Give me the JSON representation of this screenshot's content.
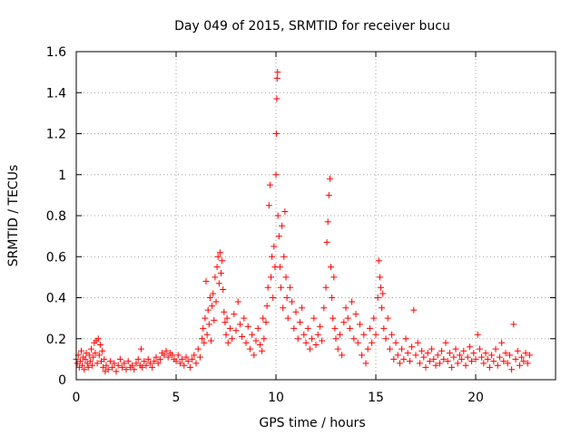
{
  "chart_data": {
    "type": "scatter",
    "title": "Day 049 of 2015, SRMTID for receiver bucu",
    "xlabel": "GPS time / hours",
    "ylabel": "SRMTID / TECUs",
    "xlim": [
      0,
      24
    ],
    "ylim": [
      0,
      1.6
    ],
    "x_ticks": [
      0,
      5,
      10,
      15,
      20
    ],
    "x_tick_labels": [
      "0",
      "5",
      "10",
      "15",
      "20"
    ],
    "y_ticks": [
      0,
      0.2,
      0.4,
      0.6,
      0.8,
      1,
      1.2,
      1.4,
      1.6
    ],
    "y_tick_labels": [
      "0",
      "0.2",
      "0.4",
      "0.6",
      "0.8",
      "1",
      "1.2",
      "1.4",
      "1.6"
    ],
    "grid": true,
    "marker": "+",
    "color": "#ff0000",
    "series": [
      {
        "name": "SRMTID",
        "points": [
          [
            0.0,
            0.1
          ],
          [
            0.05,
            0.08
          ],
          [
            0.1,
            0.12
          ],
          [
            0.15,
            0.06
          ],
          [
            0.2,
            0.09
          ],
          [
            0.25,
            0.14
          ],
          [
            0.3,
            0.07
          ],
          [
            0.35,
            0.11
          ],
          [
            0.4,
            0.05
          ],
          [
            0.45,
            0.1
          ],
          [
            0.5,
            0.13
          ],
          [
            0.55,
            0.08
          ],
          [
            0.6,
            0.06
          ],
          [
            0.65,
            0.12
          ],
          [
            0.7,
            0.09
          ],
          [
            0.75,
            0.15
          ],
          [
            0.8,
            0.07
          ],
          [
            0.85,
            0.11
          ],
          [
            0.9,
            0.18
          ],
          [
            0.95,
            0.13
          ],
          [
            1.0,
            0.19
          ],
          [
            1.05,
            0.08
          ],
          [
            1.1,
            0.2
          ],
          [
            1.15,
            0.12
          ],
          [
            1.2,
            0.17
          ],
          [
            1.25,
            0.09
          ],
          [
            1.3,
            0.14
          ],
          [
            1.35,
            0.06
          ],
          [
            1.4,
            0.1
          ],
          [
            1.45,
            0.04
          ],
          [
            1.5,
            0.07
          ],
          [
            1.6,
            0.05
          ],
          [
            1.7,
            0.09
          ],
          [
            1.8,
            0.06
          ],
          [
            1.9,
            0.08
          ],
          [
            2.0,
            0.04
          ],
          [
            2.1,
            0.07
          ],
          [
            2.2,
            0.1
          ],
          [
            2.3,
            0.06
          ],
          [
            2.4,
            0.08
          ],
          [
            2.5,
            0.05
          ],
          [
            2.6,
            0.09
          ],
          [
            2.7,
            0.06
          ],
          [
            2.8,
            0.07
          ],
          [
            2.9,
            0.05
          ],
          [
            3.0,
            0.08
          ],
          [
            3.1,
            0.1
          ],
          [
            3.2,
            0.07
          ],
          [
            3.25,
            0.15
          ],
          [
            3.3,
            0.06
          ],
          [
            3.4,
            0.09
          ],
          [
            3.5,
            0.07
          ],
          [
            3.6,
            0.1
          ],
          [
            3.7,
            0.08
          ],
          [
            3.8,
            0.06
          ],
          [
            3.9,
            0.09
          ],
          [
            4.0,
            0.11
          ],
          [
            4.1,
            0.08
          ],
          [
            4.2,
            0.1
          ],
          [
            4.3,
            0.13
          ],
          [
            4.4,
            0.12
          ],
          [
            4.5,
            0.14
          ],
          [
            4.6,
            0.11
          ],
          [
            4.7,
            0.13
          ],
          [
            4.8,
            0.12
          ],
          [
            4.9,
            0.1
          ],
          [
            5.0,
            0.09
          ],
          [
            5.1,
            0.12
          ],
          [
            5.2,
            0.08
          ],
          [
            5.3,
            0.1
          ],
          [
            5.4,
            0.07
          ],
          [
            5.5,
            0.11
          ],
          [
            5.6,
            0.09
          ],
          [
            5.7,
            0.06
          ],
          [
            5.8,
            0.1
          ],
          [
            5.9,
            0.12
          ],
          [
            6.0,
            0.08
          ],
          [
            6.1,
            0.15
          ],
          [
            6.2,
            0.11
          ],
          [
            6.3,
            0.2
          ],
          [
            6.35,
            0.25
          ],
          [
            6.4,
            0.18
          ],
          [
            6.45,
            0.3
          ],
          [
            6.5,
            0.48
          ],
          [
            6.55,
            0.22
          ],
          [
            6.6,
            0.34
          ],
          [
            6.65,
            0.27
          ],
          [
            6.7,
            0.4
          ],
          [
            6.75,
            0.19
          ],
          [
            6.8,
            0.36
          ],
          [
            6.85,
            0.42
          ],
          [
            6.9,
            0.29
          ],
          [
            6.95,
            0.5
          ],
          [
            7.0,
            0.38
          ],
          [
            7.05,
            0.55
          ],
          [
            7.1,
            0.6
          ],
          [
            7.15,
            0.47
          ],
          [
            7.2,
            0.62
          ],
          [
            7.25,
            0.52
          ],
          [
            7.3,
            0.58
          ],
          [
            7.35,
            0.44
          ],
          [
            7.4,
            0.33
          ],
          [
            7.45,
            0.28
          ],
          [
            7.5,
            0.22
          ],
          [
            7.55,
            0.3
          ],
          [
            7.6,
            0.18
          ],
          [
            7.7,
            0.25
          ],
          [
            7.8,
            0.2
          ],
          [
            7.9,
            0.32
          ],
          [
            8.0,
            0.24
          ],
          [
            8.1,
            0.38
          ],
          [
            8.2,
            0.27
          ],
          [
            8.3,
            0.21
          ],
          [
            8.4,
            0.3
          ],
          [
            8.5,
            0.18
          ],
          [
            8.6,
            0.26
          ],
          [
            8.7,
            0.15
          ],
          [
            8.8,
            0.22
          ],
          [
            8.9,
            0.12
          ],
          [
            9.0,
            0.19
          ],
          [
            9.1,
            0.25
          ],
          [
            9.2,
            0.17
          ],
          [
            9.3,
            0.14
          ],
          [
            9.35,
            0.3
          ],
          [
            9.4,
            0.2
          ],
          [
            9.5,
            0.28
          ],
          [
            9.55,
            0.36
          ],
          [
            9.6,
            0.45
          ],
          [
            9.65,
            0.85
          ],
          [
            9.7,
            0.95
          ],
          [
            9.75,
            0.5
          ],
          [
            9.8,
            0.6
          ],
          [
            9.85,
            0.4
          ],
          [
            9.9,
            0.65
          ],
          [
            9.95,
            0.55
          ],
          [
            10.0,
            1.0
          ],
          [
            10.02,
            1.2
          ],
          [
            10.04,
            1.37
          ],
          [
            10.06,
            1.47
          ],
          [
            10.08,
            1.5
          ],
          [
            10.1,
            0.8
          ],
          [
            10.15,
            0.7
          ],
          [
            10.2,
            0.55
          ],
          [
            10.25,
            0.45
          ],
          [
            10.3,
            0.75
          ],
          [
            10.35,
            0.35
          ],
          [
            10.4,
            0.6
          ],
          [
            10.45,
            0.82
          ],
          [
            10.5,
            0.5
          ],
          [
            10.55,
            0.4
          ],
          [
            10.6,
            0.3
          ],
          [
            10.7,
            0.45
          ],
          [
            10.8,
            0.38
          ],
          [
            10.9,
            0.25
          ],
          [
            11.0,
            0.33
          ],
          [
            11.1,
            0.2
          ],
          [
            11.2,
            0.28
          ],
          [
            11.3,
            0.35
          ],
          [
            11.4,
            0.22
          ],
          [
            11.5,
            0.18
          ],
          [
            11.6,
            0.25
          ],
          [
            11.7,
            0.15
          ],
          [
            11.8,
            0.2
          ],
          [
            11.9,
            0.3
          ],
          [
            12.0,
            0.17
          ],
          [
            12.1,
            0.22
          ],
          [
            12.2,
            0.26
          ],
          [
            12.3,
            0.19
          ],
          [
            12.4,
            0.35
          ],
          [
            12.5,
            0.45
          ],
          [
            12.55,
            0.67
          ],
          [
            12.6,
            0.77
          ],
          [
            12.65,
            0.9
          ],
          [
            12.7,
            0.98
          ],
          [
            12.75,
            0.55
          ],
          [
            12.8,
            0.4
          ],
          [
            12.85,
            0.3
          ],
          [
            12.9,
            0.5
          ],
          [
            12.95,
            0.25
          ],
          [
            13.0,
            0.2
          ],
          [
            13.1,
            0.15
          ],
          [
            13.2,
            0.22
          ],
          [
            13.3,
            0.12
          ],
          [
            13.4,
            0.28
          ],
          [
            13.5,
            0.35
          ],
          [
            13.6,
            0.3
          ],
          [
            13.7,
            0.25
          ],
          [
            13.8,
            0.38
          ],
          [
            13.9,
            0.2
          ],
          [
            14.0,
            0.32
          ],
          [
            14.1,
            0.18
          ],
          [
            14.2,
            0.27
          ],
          [
            14.3,
            0.12
          ],
          [
            14.4,
            0.22
          ],
          [
            14.5,
            0.08
          ],
          [
            14.6,
            0.15
          ],
          [
            14.7,
            0.25
          ],
          [
            14.8,
            0.18
          ],
          [
            14.9,
            0.3
          ],
          [
            15.0,
            0.22
          ],
          [
            15.1,
            0.4
          ],
          [
            15.15,
            0.58
          ],
          [
            15.2,
            0.5
          ],
          [
            15.25,
            0.45
          ],
          [
            15.3,
            0.35
          ],
          [
            15.35,
            0.42
          ],
          [
            15.4,
            0.25
          ],
          [
            15.5,
            0.2
          ],
          [
            15.6,
            0.3
          ],
          [
            15.7,
            0.15
          ],
          [
            15.8,
            0.22
          ],
          [
            15.9,
            0.1
          ],
          [
            16.0,
            0.18
          ],
          [
            16.1,
            0.12
          ],
          [
            16.2,
            0.08
          ],
          [
            16.3,
            0.15
          ],
          [
            16.4,
            0.1
          ],
          [
            16.5,
            0.2
          ],
          [
            16.6,
            0.13
          ],
          [
            16.7,
            0.09
          ],
          [
            16.8,
            0.16
          ],
          [
            16.9,
            0.34
          ],
          [
            17.0,
            0.12
          ],
          [
            17.1,
            0.18
          ],
          [
            17.2,
            0.08
          ],
          [
            17.3,
            0.14
          ],
          [
            17.4,
            0.11
          ],
          [
            17.5,
            0.06
          ],
          [
            17.6,
            0.13
          ],
          [
            17.7,
            0.09
          ],
          [
            17.8,
            0.15
          ],
          [
            17.9,
            0.1
          ],
          [
            18.0,
            0.07
          ],
          [
            18.1,
            0.12
          ],
          [
            18.2,
            0.08
          ],
          [
            18.3,
            0.14
          ],
          [
            18.4,
            0.1
          ],
          [
            18.5,
            0.18
          ],
          [
            18.6,
            0.09
          ],
          [
            18.7,
            0.13
          ],
          [
            18.8,
            0.06
          ],
          [
            18.9,
            0.11
          ],
          [
            19.0,
            0.15
          ],
          [
            19.1,
            0.08
          ],
          [
            19.2,
            0.12
          ],
          [
            19.3,
            0.1
          ],
          [
            19.4,
            0.14
          ],
          [
            19.5,
            0.07
          ],
          [
            19.6,
            0.11
          ],
          [
            19.7,
            0.16
          ],
          [
            19.8,
            0.09
          ],
          [
            19.9,
            0.13
          ],
          [
            20.0,
            0.1
          ],
          [
            20.1,
            0.22
          ],
          [
            20.2,
            0.15
          ],
          [
            20.3,
            0.11
          ],
          [
            20.4,
            0.08
          ],
          [
            20.5,
            0.13
          ],
          [
            20.6,
            0.1
          ],
          [
            20.7,
            0.06
          ],
          [
            20.8,
            0.12
          ],
          [
            20.9,
            0.09
          ],
          [
            21.0,
            0.15
          ],
          [
            21.1,
            0.07
          ],
          [
            21.2,
            0.11
          ],
          [
            21.3,
            0.18
          ],
          [
            21.4,
            0.09
          ],
          [
            21.5,
            0.13
          ],
          [
            21.6,
            0.08
          ],
          [
            21.7,
            0.12
          ],
          [
            21.8,
            0.05
          ],
          [
            21.9,
            0.27
          ],
          [
            22.0,
            0.1
          ],
          [
            22.1,
            0.14
          ],
          [
            22.2,
            0.07
          ],
          [
            22.3,
            0.11
          ],
          [
            22.4,
            0.09
          ],
          [
            22.5,
            0.13
          ],
          [
            22.6,
            0.08
          ],
          [
            22.7,
            0.12
          ]
        ]
      }
    ]
  }
}
